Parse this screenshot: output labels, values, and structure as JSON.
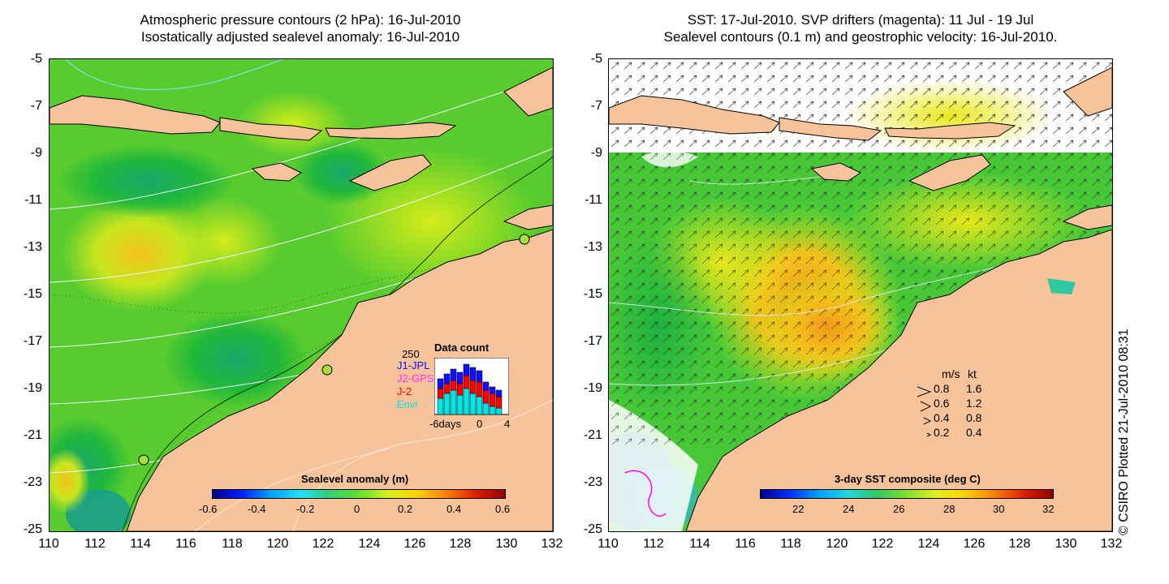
{
  "left_panel": {
    "title_line1": "Atmospheric pressure contours (2 hPa): 16-Jul-2010",
    "title_line2": "Isostatically adjusted sealevel anomaly: 16-Jul-2010",
    "colorbar": {
      "title": "Sealevel anomaly (m)",
      "ticks": [
        "-0.6",
        "-0.4",
        "-0.2",
        "0",
        "0.2",
        "0.4",
        "0.6"
      ]
    },
    "data_count": {
      "title": "Data count",
      "ymax_label": "250",
      "legend": [
        "J1-JPL",
        "J2-GPS",
        "J-2",
        "Envi"
      ],
      "legend_colors": [
        "#1010ff",
        "#ff30ff",
        "#ff0000",
        "#00e5e5"
      ],
      "x_labels": [
        "-6days",
        "0",
        "4"
      ]
    }
  },
  "right_panel": {
    "title_line1": "SST: 17-Jul-2010. SVP drifters (magenta): 11 Jul - 19 Jul",
    "title_line2": "Sealevel contours (0.1 m) and geostrophic velocity: 16-Jul-2010.",
    "colorbar": {
      "title": "3-day SST composite (deg C)",
      "ticks": [
        "22",
        "24",
        "26",
        "28",
        "30",
        "32"
      ]
    },
    "velocity_legend": {
      "header_ms": "m/s",
      "header_kt": "kt",
      "rows": [
        {
          "ms": "0.8",
          "kt": "1.6"
        },
        {
          "ms": "0.6",
          "kt": "1.2"
        },
        {
          "ms": "0.4",
          "kt": "0.8"
        },
        {
          "ms": "0.2",
          "kt": "0.4"
        }
      ]
    }
  },
  "axes": {
    "y_labels": [
      "-5",
      "-7",
      "-9",
      "-11",
      "-13",
      "-15",
      "-17",
      "-19",
      "-21",
      "-23",
      "-25"
    ],
    "x_labels": [
      "110",
      "112",
      "114",
      "116",
      "118",
      "120",
      "122",
      "124",
      "126",
      "128",
      "130",
      "132"
    ]
  },
  "credit": "© CSIRO Plotted 21-Jul-2010 08:31",
  "colors": {
    "land": "#f7c39a",
    "ocean_green": "#3ec83e",
    "contour": "#e8f0ff"
  }
}
